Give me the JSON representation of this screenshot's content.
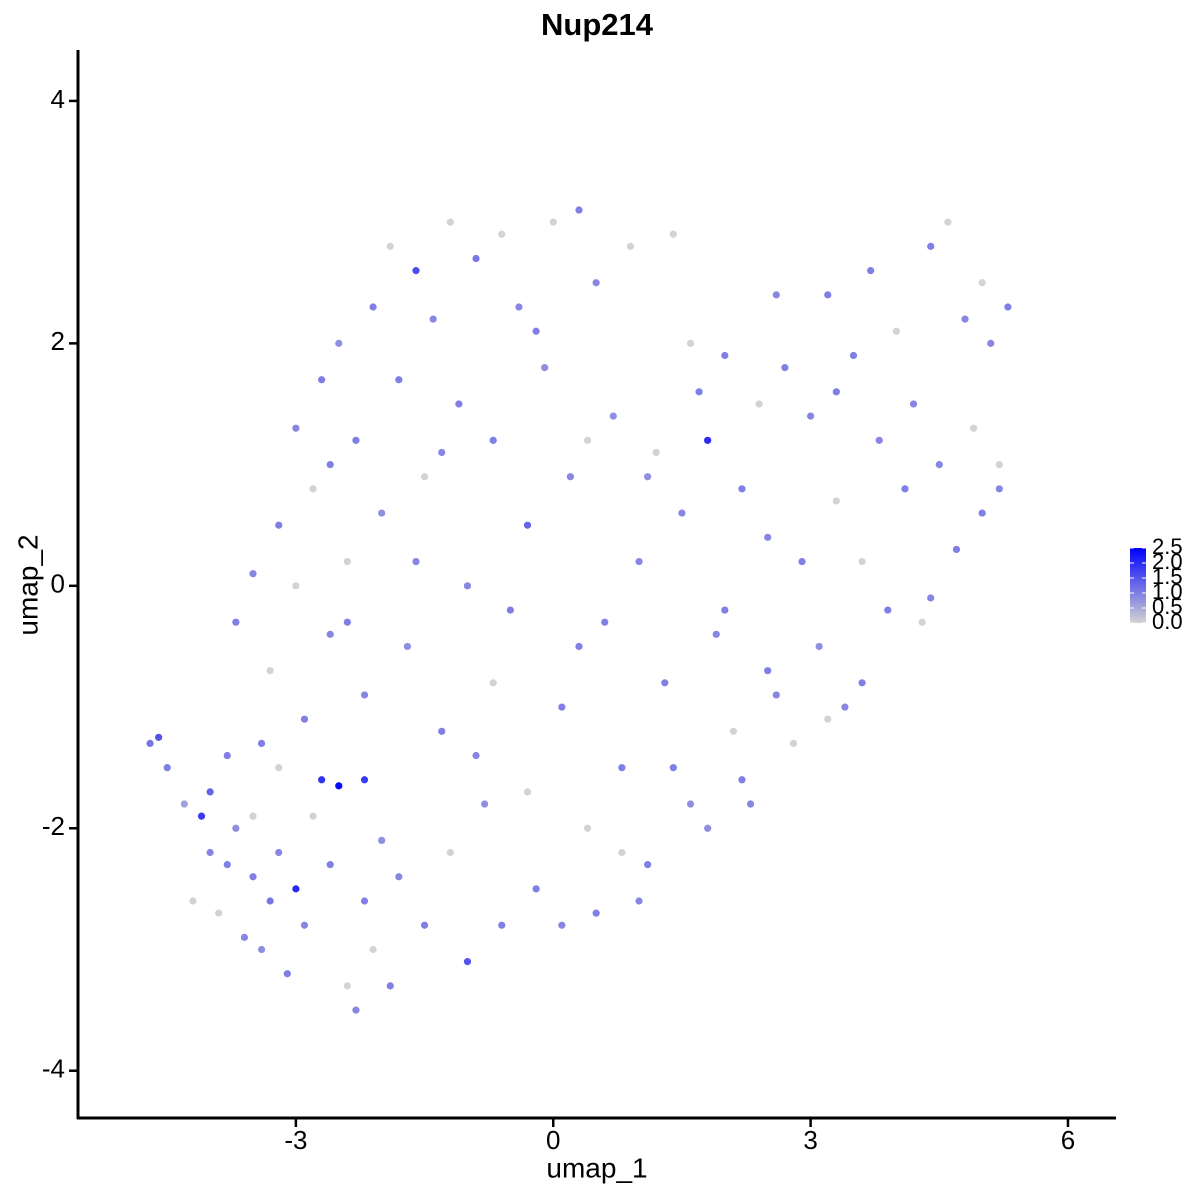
{
  "chart_data": {
    "type": "scatter",
    "title": "Nup214",
    "x_label": "umap_1",
    "y_label": "umap_2",
    "x": [
      -4.7,
      -4.6,
      -4.5,
      -4.3,
      -4.1,
      -4.0,
      -4.0,
      -3.9,
      -3.8,
      -3.7,
      -3.6,
      -3.5,
      -3.5,
      -3.4,
      -3.3,
      -3.2,
      -3.1,
      -3.0,
      -2.9,
      -2.8,
      -2.7,
      -2.6,
      -2.5,
      -2.4,
      -2.3,
      -2.2,
      -2.2,
      -2.1,
      -2.0,
      -1.9,
      -3.7,
      -3.5,
      -3.3,
      -3.2,
      -3.0,
      -2.9,
      -2.8,
      -2.7,
      -2.6,
      -2.5,
      -2.4,
      -2.3,
      -2.2,
      -2.1,
      -2.0,
      -1.9,
      -1.8,
      -1.7,
      -1.6,
      -1.5,
      -1.4,
      -1.3,
      -1.2,
      -1.1,
      -1.0,
      -0.9,
      -0.8,
      -0.7,
      -0.6,
      -0.5,
      -0.4,
      -0.3,
      -0.2,
      -0.1,
      0.0,
      0.1,
      0.2,
      0.3,
      0.4,
      0.5,
      0.6,
      0.7,
      0.8,
      0.9,
      1.0,
      1.1,
      1.2,
      1.3,
      1.4,
      1.5,
      1.6,
      1.7,
      1.8,
      1.9,
      2.0,
      2.1,
      2.2,
      2.3,
      2.4,
      2.5,
      2.6,
      2.7,
      2.8,
      2.9,
      3.0,
      3.1,
      3.2,
      3.3,
      3.4,
      3.5,
      3.6,
      3.7,
      3.8,
      3.9,
      4.0,
      4.1,
      4.2,
      4.3,
      4.4,
      4.5,
      4.6,
      4.7,
      4.8,
      4.9,
      5.0,
      5.1,
      5.2,
      5.3,
      5.2,
      5.0,
      -1.8,
      -1.5,
      -1.2,
      -1.0,
      -0.9,
      -0.6,
      -0.3,
      0.1,
      0.5,
      0.8,
      1.0,
      1.4,
      1.8,
      2.2,
      2.6,
      3.2,
      3.6,
      -3.2,
      -3.8,
      -4.2,
      -2.4,
      -1.6,
      -0.7,
      0.3,
      1.1,
      0.4,
      -0.2,
      -1.3,
      -2.6,
      -3.0,
      -3.4,
      2.5,
      3.3,
      4.4,
      1.6,
      2.0
    ],
    "y": [
      -1.3,
      -1.25,
      -1.5,
      -1.8,
      -1.9,
      -1.7,
      -2.2,
      -2.7,
      -2.3,
      -2.0,
      -2.9,
      -2.4,
      -1.9,
      -3.0,
      -2.6,
      -2.2,
      -3.2,
      -2.5,
      -2.8,
      -1.9,
      -1.6,
      -2.3,
      -1.65,
      -3.3,
      -3.5,
      -2.6,
      -1.6,
      -3.0,
      -2.1,
      -3.3,
      -0.3,
      0.1,
      -0.7,
      0.5,
      1.3,
      -1.1,
      0.8,
      1.7,
      -0.4,
      2.0,
      0.2,
      1.2,
      -0.9,
      2.3,
      0.6,
      2.8,
      1.7,
      -0.5,
      2.6,
      0.9,
      2.2,
      -1.2,
      3.0,
      1.5,
      0.0,
      2.7,
      -1.8,
      1.2,
      2.9,
      -0.2,
      2.3,
      0.5,
      -2.5,
      1.8,
      3.0,
      -1.0,
      0.9,
      3.1,
      -2.0,
      2.5,
      -0.3,
      1.4,
      -1.5,
      2.8,
      0.2,
      -2.3,
      1.1,
      -0.8,
      2.9,
      0.6,
      -1.8,
      1.6,
      1.2,
      -0.4,
      1.9,
      -1.2,
      0.8,
      -1.8,
      1.5,
      -0.7,
      2.4,
      1.8,
      -1.3,
      0.2,
      1.4,
      -0.5,
      2.4,
      0.7,
      -1.0,
      1.9,
      0.2,
      2.6,
      1.2,
      -0.2,
      2.1,
      0.8,
      1.5,
      -0.3,
      2.8,
      1.0,
      3.0,
      0.3,
      2.2,
      1.3,
      0.6,
      2.0,
      1.0,
      2.3,
      0.8,
      2.5,
      -2.4,
      -2.8,
      -2.2,
      -3.1,
      -1.4,
      -2.8,
      -1.7,
      -2.8,
      -2.7,
      -2.2,
      -2.6,
      -1.5,
      -2.0,
      -1.6,
      -0.9,
      -1.1,
      -0.8,
      -1.5,
      -1.4,
      -2.6,
      -0.3,
      0.2,
      -0.8,
      -0.5,
      0.9,
      1.2,
      2.1,
      1.1,
      1.0,
      0.0,
      -1.3,
      0.4,
      1.6,
      -0.1,
      2.0,
      -0.2
    ],
    "values": [
      1.1,
      1.5,
      1.0,
      0.6,
      1.8,
      1.3,
      0.9,
      0,
      1.0,
      0.8,
      0.9,
      1.0,
      0,
      0.8,
      1.1,
      0.9,
      1.0,
      2.0,
      0.9,
      0,
      1.9,
      1.0,
      2.4,
      0,
      0.9,
      1.0,
      1.8,
      0,
      0.8,
      1.0,
      1.0,
      0.9,
      0,
      1.0,
      0.9,
      1.0,
      0,
      1.0,
      0.9,
      0.8,
      0,
      1.0,
      0.9,
      1.0,
      0.8,
      0,
      1.0,
      0.8,
      1.6,
      0,
      0.9,
      1.0,
      0,
      1.0,
      0.9,
      1.1,
      0.8,
      1.0,
      0,
      1.0,
      0.9,
      1.3,
      1.0,
      0.8,
      0,
      1.0,
      0.9,
      1.0,
      0,
      0.9,
      1.0,
      0.8,
      1.0,
      0,
      0.9,
      1.0,
      0,
      1.0,
      0,
      0.9,
      0.8,
      1.0,
      2.0,
      0.9,
      1.0,
      0,
      1.0,
      0.9,
      0,
      1.0,
      0.9,
      1.0,
      0,
      1.0,
      0.9,
      0.8,
      1.0,
      0,
      0.9,
      1.0,
      0,
      1.0,
      0.9,
      1.0,
      0,
      1.0,
      0.9,
      0,
      1.0,
      0.9,
      0,
      1.0,
      0.9,
      0,
      1.0,
      0.9,
      0,
      1.0,
      0.9,
      0,
      0.9,
      1.0,
      0,
      1.5,
      0.9,
      1.0,
      0,
      0.9,
      1.0,
      0,
      0.9,
      1.0,
      0.8,
      1.0,
      0.9,
      0,
      1.0,
      0,
      1.0,
      0,
      1.0,
      0.9,
      0,
      1.0,
      0.8,
      0,
      1.0,
      0.9,
      1.0,
      0,
      1.0,
      0.9,
      1.0,
      0.9,
      0,
      1.0
    ],
    "color_scale": [
      "#d3d3d3",
      "#0000ff"
    ],
    "color_lim": [
      0,
      2.5
    ],
    "color_ticks": [
      {
        "value": 0,
        "label": "0.0"
      },
      {
        "value": 0.5,
        "label": "0.5"
      },
      {
        "value": 1,
        "label": "1.0"
      },
      {
        "value": 1.5,
        "label": "1.5"
      },
      {
        "value": 2,
        "label": "2.0"
      },
      {
        "value": 2.5,
        "label": "2.5"
      }
    ],
    "xlim": [
      -5.54,
      6.56
    ],
    "xticks": [
      -3,
      0,
      3,
      6
    ],
    "ylim": [
      -4.39,
      4.42
    ],
    "yticks": [
      -4,
      -2,
      0,
      2,
      4
    ]
  }
}
